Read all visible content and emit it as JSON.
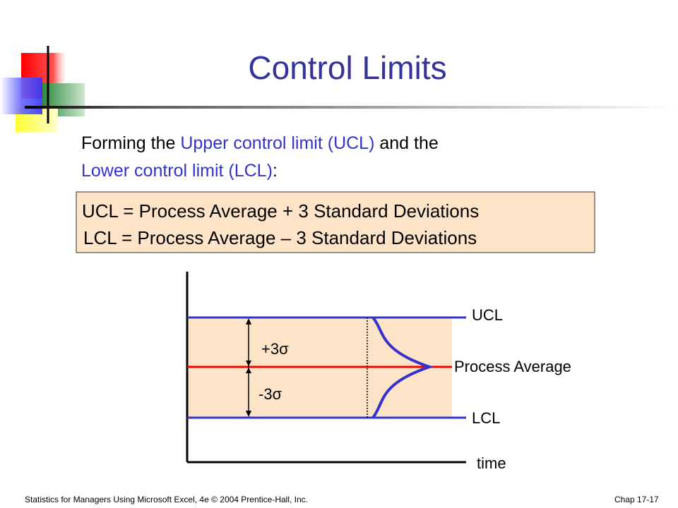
{
  "title": "Control Limits",
  "intro": {
    "lead": "Forming the",
    "upper": "Upper control limit (UCL)",
    "mid": "and the",
    "lower": "Lower control limit (LCL)",
    "end": ":"
  },
  "formulas": [
    "UCL = Process Average + 3 Standard Deviations",
    "LCL = Process Average – 3 Standard Deviations"
  ],
  "diagram": {
    "ucl": "UCL",
    "average": "Process Average",
    "lcl": "LCL",
    "time": "time",
    "plus": "+3σ",
    "minus": "-3σ"
  },
  "footer": {
    "left": "Statistics for Managers Using Microsoft Excel, 4e © 2004 Prentice-Hall, Inc.",
    "right": "Chap 17-17"
  }
}
